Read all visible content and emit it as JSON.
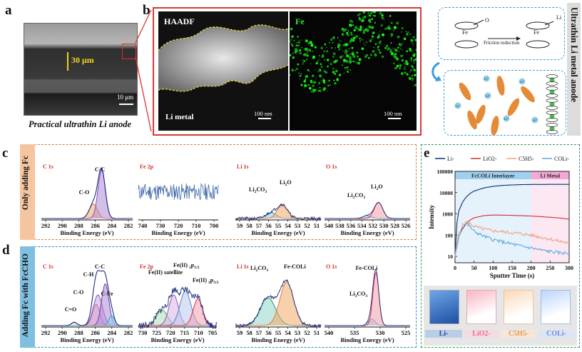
{
  "panels": {
    "a": {
      "label": "a",
      "thickness_label": "30 μm",
      "scalebar": "10 μm",
      "caption": "Practical ultrathin Li anode"
    },
    "b": {
      "label": "b",
      "haadf_title": "HAADF",
      "fe_title": "Fe",
      "li_metal": "Li metal",
      "scalebar1": "100 nm",
      "scalebar2": "100 nm",
      "side_title": "Ultrathin Li metal anode",
      "schematic": {
        "friction_text": "Friction reduction",
        "atom_fe": "Fe",
        "atom_o": "O",
        "atom_li": "Li",
        "li_ion": "Li⁺"
      }
    },
    "c": {
      "label": "c",
      "row_title": "Only adding Fc",
      "xlabel": "Binding Energy (eV)",
      "spectra": [
        {
          "title": "C 1s",
          "peaks": [
            "C-C",
            "C-O"
          ],
          "ticks": [
            "292",
            "290",
            "288",
            "286",
            "284",
            "282"
          ]
        },
        {
          "title": "Fe 2p",
          "peaks": [],
          "ticks": [
            "740",
            "730",
            "720",
            "710",
            "700"
          ]
        },
        {
          "title": "Li 1s",
          "peaks": [
            "Li2CO3",
            "Li2O"
          ],
          "ticks": [
            "59",
            "58",
            "57",
            "56",
            "55",
            "54",
            "53",
            "52",
            "51"
          ]
        },
        {
          "title": "O 1s",
          "peaks": [
            "Li2CO3",
            "Li2O"
          ],
          "ticks": [
            "540",
            "538",
            "536",
            "534",
            "532",
            "530",
            "528",
            "526"
          ]
        }
      ]
    },
    "d": {
      "label": "d",
      "row_title": "Adding Fc with FcCHO",
      "xlabel": "Binding Energy (eV)",
      "spectra": [
        {
          "title": "C 1s",
          "peaks": [
            "C-C",
            "C-H",
            "C-O",
            "C-Fe",
            "C=O"
          ],
          "ticks": [
            "292",
            "290",
            "288",
            "286",
            "284",
            "282"
          ]
        },
        {
          "title": "Fe 2p",
          "peaks": [
            "Fe(II) satellite",
            "Fe(II) 2p1/2",
            "Fe(II) 2p3/2"
          ],
          "ticks": [
            "725",
            "720",
            "715",
            "710",
            "705"
          ],
          "extra_tick": "730"
        },
        {
          "title": "Li 1s",
          "peaks": [
            "Li2CO3",
            "Fe-COLi"
          ],
          "ticks": [
            "59",
            "58",
            "57",
            "56",
            "55",
            "54",
            "53",
            "52",
            "51"
          ]
        },
        {
          "title": "O 1s",
          "peaks": [
            "Fe-COLi",
            "Li2CO3"
          ],
          "ticks": [
            "540",
            "535",
            "530",
            "525"
          ]
        }
      ]
    },
    "e": {
      "label": "e",
      "ylabel": "Intensity",
      "xlabel": "Sputter Time (s)",
      "region1": "FcCOLi Interlayer",
      "region2": "Li Metal",
      "swatches": [
        "Li-",
        "LiO2-",
        "C5H5-",
        "COLi-"
      ]
    }
  },
  "chart_data": {
    "type": "line",
    "title": "",
    "xlabel": "Sputter Time (s)",
    "ylabel": "Intensity",
    "xlim": [
      0,
      300
    ],
    "ylim": [
      5,
      100000
    ],
    "yscale": "log",
    "x_ticks": [
      "0",
      "50",
      "100",
      "150",
      "200",
      "250",
      "300"
    ],
    "y_ticks": [
      "10",
      "100",
      "1000",
      "10000",
      "100000"
    ],
    "regions": [
      {
        "label": "FcCOLi Interlayer",
        "from": 0,
        "to": 200,
        "color": "#cfe6f7"
      },
      {
        "label": "Li Metal",
        "from": 200,
        "to": 300,
        "color": "#f8d6ea"
      }
    ],
    "series": [
      {
        "name": "Li-",
        "color": "#0b2f6b",
        "x": [
          0,
          5,
          10,
          20,
          30,
          40,
          50,
          75,
          100,
          125,
          150,
          175,
          200,
          225,
          250,
          275,
          300
        ],
        "y": [
          10,
          400,
          1400,
          3600,
          6400,
          9200,
          11800,
          16500,
          19800,
          21800,
          23000,
          23800,
          24200,
          24300,
          24400,
          24400,
          24400
        ]
      },
      {
        "name": "LiO2-",
        "color": "#d62b2b",
        "x": [
          0,
          5,
          10,
          20,
          30,
          40,
          50,
          75,
          100,
          125,
          150,
          175,
          200,
          225,
          250,
          275,
          300
        ],
        "y": [
          10,
          40,
          90,
          200,
          350,
          520,
          650,
          820,
          880,
          870,
          850,
          820,
          790,
          740,
          690,
          640,
          560
        ]
      },
      {
        "name": "C5H5-",
        "color": "#f0a27a",
        "x": [
          0,
          5,
          10,
          20,
          30,
          40,
          50,
          75,
          100,
          125,
          150,
          175,
          200,
          225,
          250,
          275,
          300
        ],
        "y": [
          10,
          40,
          120,
          300,
          420,
          340,
          260,
          190,
          160,
          145,
          130,
          115,
          100,
          80,
          65,
          52,
          42
        ]
      },
      {
        "name": "COLi-",
        "color": "#5aa6dd",
        "x": [
          0,
          5,
          10,
          20,
          30,
          40,
          50,
          75,
          100,
          125,
          150,
          175,
          200,
          225,
          250,
          275,
          300
        ],
        "y": [
          10,
          30,
          90,
          260,
          360,
          240,
          150,
          90,
          62,
          48,
          38,
          30,
          25,
          20,
          17,
          15,
          14
        ]
      }
    ]
  }
}
